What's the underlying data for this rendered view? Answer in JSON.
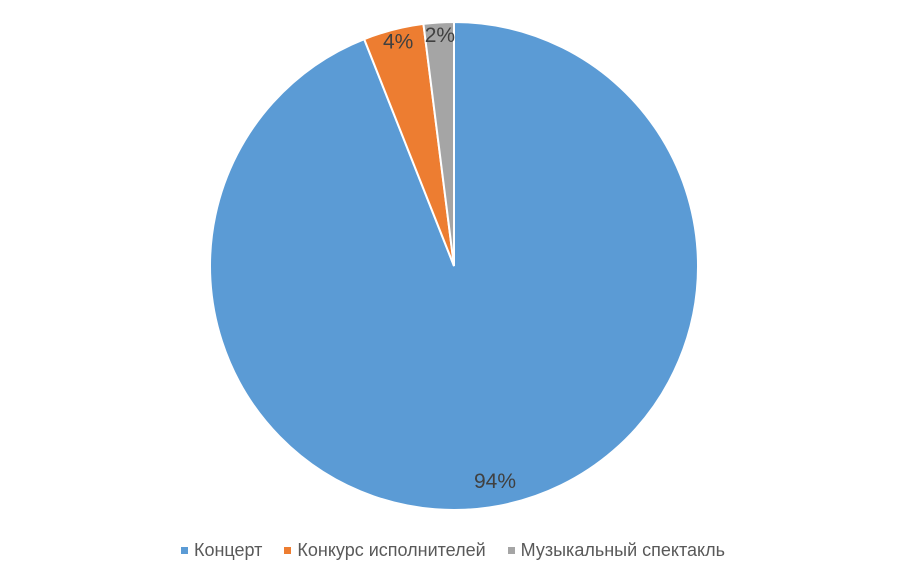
{
  "chart_data": {
    "type": "pie",
    "categories": [
      "Концерт",
      "Конкурс исполнителей",
      "Музыкальный спектакль"
    ],
    "values": [
      94,
      4,
      2
    ],
    "labels": [
      "94%",
      "4%",
      "2%"
    ],
    "colors": [
      "#5B9BD5",
      "#ED7D31",
      "#A5A5A5"
    ],
    "legend": "bottom"
  }
}
